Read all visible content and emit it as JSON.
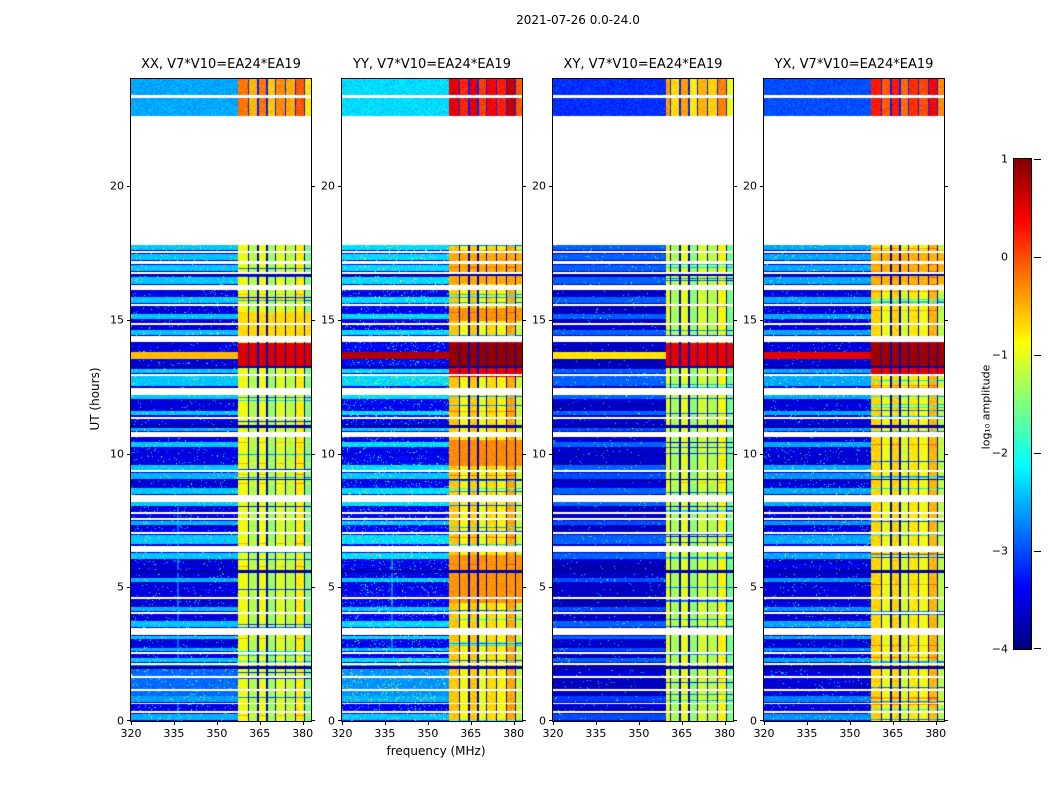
{
  "chart_data": {
    "type": "heatmap",
    "title": "2021-07-26 0.0-24.0",
    "xlabel": "frequency (MHz)",
    "ylabel": "UT (hours)",
    "x_range": [
      320,
      382.9
    ],
    "y_range": [
      0,
      24
    ],
    "x_ticks": [
      320,
      335,
      350,
      365,
      380
    ],
    "y_ticks": [
      0,
      5,
      10,
      15,
      20
    ],
    "colorbar": {
      "label": "log₁₀ amplitude",
      "ticks": [
        1,
        0,
        -1,
        -2,
        -3,
        -4
      ],
      "range": [
        -4,
        1
      ],
      "colormap": "jet"
    },
    "panels": [
      {
        "label": "XX, V7*V10=EA24*EA19",
        "band_gain": 0,
        "base_off": 0,
        "row_gain": 0,
        "speckle": 0.03,
        "burst_full": -0.55,
        "burst_band": 0.55,
        "light_blocks": [
          [
            0.72,
            2.08,
            -2.85
          ]
        ],
        "top_strip": {
          "base": -2.55,
          "band": -0.35
        },
        "band_hot": [
          [
            13.28,
            14.12,
            0.45
          ],
          [
            14.4,
            15.3,
            -0.7
          ]
        ],
        "vlines": [
          [
            336.5,
            0,
            8,
            -2.9
          ]
        ]
      },
      {
        "label": "YY, V7*V10=EA24*EA19",
        "band_gain": 0.35,
        "base_off": 0.12,
        "row_gain": 0.1,
        "speckle": 0.05,
        "burst_full": 0.75,
        "burst_band": 0.9,
        "light_blocks": [
          [
            0.72,
            2.08,
            -2.65
          ]
        ],
        "top_strip": {
          "base": -2.3,
          "band": 0.35
        },
        "band_hot": [
          [
            4.4,
            6.2,
            -0.35
          ],
          [
            9.55,
            10.5,
            -0.3
          ],
          [
            12.85,
            14.3,
            0.5
          ],
          [
            14.95,
            15.45,
            -0.35
          ],
          [
            16.32,
            17.6,
            -0.45
          ]
        ],
        "vlines": [
          [
            337.5,
            2.5,
            6.5,
            -2.8
          ]
        ]
      },
      {
        "label": "XY, V7*V10=EA24*EA19",
        "band_gain": -0.05,
        "base_off": -0.12,
        "row_gain": -0.5,
        "speckle": 0.015,
        "burst_full": -0.75,
        "burst_band": 0.5,
        "band_start": 359.5,
        "light_blocks": [],
        "top_strip": {
          "base": -3.15,
          "band": -0.55
        },
        "band_hot": [
          [
            13.28,
            13.95,
            0.4
          ]
        ],
        "vlines": []
      },
      {
        "label": "YX, V7*V10=EA24*EA19",
        "band_gain": 0.28,
        "base_off": -0.02,
        "row_gain": -0.15,
        "speckle": 0.03,
        "burst_full": 0.5,
        "burst_band": 0.85,
        "light_blocks": [],
        "top_strip": {
          "base": -3.0,
          "band": 0.1
        },
        "band_hot": [
          [
            12.9,
            14.2,
            0.5
          ],
          [
            16.32,
            17.6,
            -0.5
          ]
        ],
        "vlines": []
      }
    ],
    "render": {
      "seed": 1337,
      "base_level": -3.55,
      "noise_sigma": 0.28,
      "top_t": 22.62,
      "band": {
        "start": 357.5,
        "end": 382.9,
        "gap_level": -3.7,
        "columns": [
          [
            357.5,
            360.8,
            -0.95
          ],
          [
            361.2,
            364.2,
            -1.25
          ],
          [
            364.7,
            367.2,
            -0.95
          ],
          [
            367.7,
            370.3,
            -1.35
          ],
          [
            370.8,
            373.8,
            -1.05
          ],
          [
            374.3,
            377.3,
            -1.2
          ],
          [
            377.8,
            380.3,
            -0.8
          ],
          [
            380.8,
            382.9,
            -1.5
          ]
        ]
      },
      "no_data": [
        [
          17.96,
          22.62
        ]
      ],
      "gaps": [
        [
          0.3,
          0.38
        ],
        [
          0.62,
          0.68
        ],
        [
          1.12,
          1.18
        ],
        [
          1.62,
          1.68
        ],
        [
          2.1,
          2.18
        ],
        [
          2.5,
          2.58
        ],
        [
          3.2,
          3.46
        ],
        [
          4.0,
          4.08
        ],
        [
          4.55,
          4.62
        ],
        [
          6.3,
          6.56
        ],
        [
          7.0,
          7.08
        ],
        [
          7.5,
          7.58
        ],
        [
          7.72,
          7.8
        ],
        [
          8.2,
          8.46
        ],
        [
          9.3,
          9.38
        ],
        [
          10.6,
          10.8
        ],
        [
          11.3,
          11.38
        ],
        [
          12.2,
          12.46
        ],
        [
          12.9,
          12.98
        ],
        [
          14.16,
          14.4
        ],
        [
          14.8,
          14.88
        ],
        [
          15.5,
          15.58
        ],
        [
          16.1,
          16.3
        ],
        [
          16.72,
          16.8
        ],
        [
          17.1,
          17.18
        ],
        [
          17.5,
          17.58
        ],
        [
          17.8,
          17.95
        ],
        [
          23.3,
          23.4
        ]
      ],
      "cyan_rows": [
        [
          0.04,
          0.26,
          -2.5
        ],
        [
          0.7,
          0.92,
          -2.6
        ],
        [
          2.2,
          2.34,
          -2.4
        ],
        [
          2.6,
          2.74,
          -2.5
        ],
        [
          3.06,
          3.18,
          -2.4
        ],
        [
          3.5,
          3.72,
          -2.4
        ],
        [
          4.1,
          4.28,
          -2.5
        ],
        [
          5.18,
          5.34,
          -2.5
        ],
        [
          6.06,
          6.28,
          -2.4
        ],
        [
          6.6,
          6.96,
          -2.4
        ],
        [
          7.34,
          7.48,
          -2.5
        ],
        [
          8.04,
          8.18,
          -2.4
        ],
        [
          8.5,
          8.72,
          -2.4
        ],
        [
          9.04,
          9.26,
          -2.5
        ],
        [
          9.4,
          9.56,
          -2.4
        ],
        [
          10.24,
          10.44,
          -2.4
        ],
        [
          10.84,
          11.0,
          -2.5
        ],
        [
          11.44,
          11.6,
          -2.4
        ],
        [
          12.04,
          12.18,
          -2.4
        ],
        [
          12.52,
          12.88,
          -2.4
        ],
        [
          13.0,
          13.16,
          -2.4
        ],
        [
          14.44,
          14.62,
          -2.4
        ],
        [
          15.04,
          15.22,
          -2.4
        ],
        [
          15.62,
          15.86,
          -2.4
        ],
        [
          16.34,
          16.6,
          -2.4
        ],
        [
          16.84,
          17.06,
          -2.4
        ],
        [
          17.24,
          17.44,
          -2.4
        ],
        [
          17.62,
          17.78,
          -2.4
        ]
      ],
      "dark_rows": [
        [
          1.96,
          2.04
        ],
        [
          5.54,
          5.66
        ],
        [
          9.0,
          9.06
        ],
        [
          10.94,
          11.08
        ],
        [
          13.18,
          13.26
        ],
        [
          16.62,
          16.7
        ]
      ],
      "burst": {
        "t_full": [
          [
            13.54,
            13.78
          ]
        ],
        "t_band": [
          [
            13.28,
            14.12
          ]
        ]
      }
    }
  }
}
